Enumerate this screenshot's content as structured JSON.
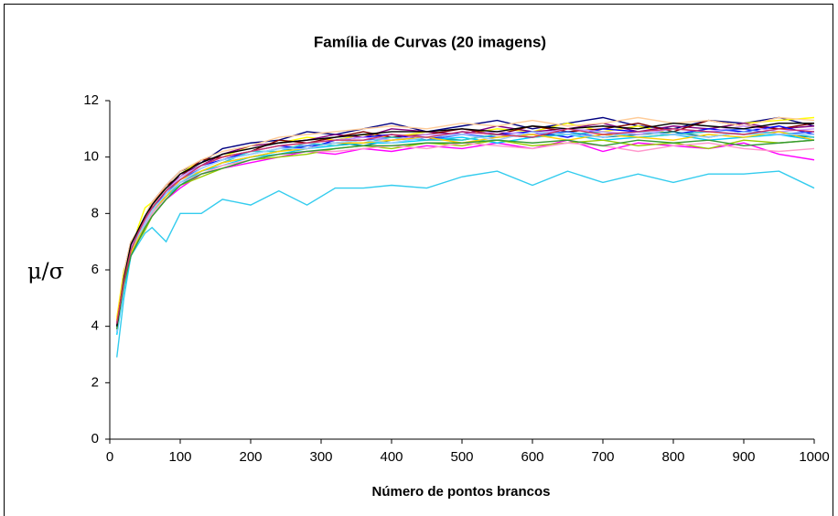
{
  "chart_data": {
    "type": "line",
    "title": "Família de Curvas (20 imagens)",
    "x_label": "Número de pontos brancos",
    "y_label": "μ/σ",
    "x": [
      10,
      20,
      30,
      40,
      50,
      60,
      80,
      100,
      130,
      160,
      200,
      240,
      280,
      320,
      360,
      400,
      450,
      500,
      550,
      600,
      650,
      700,
      750,
      800,
      850,
      900,
      950,
      1000
    ],
    "xlim": [
      0,
      1000
    ],
    "xticks": [
      0,
      100,
      200,
      300,
      400,
      500,
      600,
      700,
      800,
      900,
      1000
    ],
    "ylim": [
      0,
      12
    ],
    "yticks": [
      0,
      2,
      4,
      6,
      8,
      10,
      12
    ],
    "grid": false,
    "series": [
      {
        "color": "#000080",
        "values": [
          4.1,
          5.8,
          6.9,
          7.4,
          7.9,
          8.4,
          9.0,
          9.5,
          9.8,
          10.3,
          10.5,
          10.6,
          10.9,
          10.8,
          11.0,
          11.2,
          10.9,
          11.1,
          11.3,
          11.0,
          11.2,
          11.4,
          11.1,
          11.0,
          11.3,
          11.2,
          11.4,
          11.1
        ]
      },
      {
        "color": "#ff00ff",
        "values": [
          3.9,
          5.4,
          6.5,
          7.0,
          7.5,
          7.9,
          8.5,
          8.9,
          9.4,
          9.6,
          9.8,
          10.0,
          10.2,
          10.1,
          10.3,
          10.2,
          10.4,
          10.3,
          10.5,
          10.3,
          10.6,
          10.2,
          10.5,
          10.4,
          10.3,
          10.5,
          10.1,
          9.9
        ]
      },
      {
        "color": "#ffff00",
        "values": [
          4.3,
          6.0,
          6.6,
          7.5,
          8.2,
          8.4,
          8.9,
          9.4,
          9.9,
          10.0,
          10.4,
          10.5,
          10.7,
          10.6,
          10.8,
          10.7,
          10.9,
          10.8,
          11.0,
          10.9,
          11.2,
          10.9,
          11.1,
          10.8,
          11.0,
          11.2,
          11.3,
          11.4
        ]
      },
      {
        "color": "#33ccee",
        "values": [
          2.9,
          5.0,
          6.5,
          6.9,
          7.3,
          7.5,
          7.0,
          8.0,
          8.0,
          8.5,
          8.3,
          8.8,
          8.3,
          8.9,
          8.9,
          9.0,
          8.9,
          9.3,
          9.5,
          9.0,
          9.5,
          9.1,
          9.4,
          9.1,
          9.4,
          9.4,
          9.5,
          8.9
        ]
      },
      {
        "color": "#800080",
        "values": [
          4.2,
          5.7,
          6.8,
          7.3,
          7.8,
          8.2,
          8.8,
          9.4,
          9.7,
          10.1,
          10.4,
          10.5,
          10.6,
          10.8,
          10.7,
          11.0,
          10.9,
          10.8,
          11.1,
          10.9,
          11.0,
          11.2,
          10.9,
          11.1,
          11.0,
          11.2,
          11.0,
          11.1
        ]
      },
      {
        "color": "#800000",
        "values": [
          4.0,
          5.9,
          7.0,
          7.2,
          7.6,
          8.3,
          9.0,
          9.3,
          9.9,
          10.0,
          10.2,
          10.6,
          10.5,
          10.7,
          10.9,
          10.7,
          10.8,
          11.0,
          10.8,
          11.1,
          10.9,
          11.0,
          11.2,
          10.9,
          11.3,
          11.1,
          11.0,
          11.2
        ]
      },
      {
        "color": "#008080",
        "values": [
          3.8,
          5.5,
          6.6,
          7.1,
          7.6,
          8.0,
          8.6,
          9.1,
          9.5,
          9.8,
          10.0,
          10.2,
          10.4,
          10.5,
          10.4,
          10.6,
          10.7,
          10.6,
          10.8,
          10.7,
          10.9,
          10.7,
          10.8,
          10.9,
          10.7,
          10.9,
          10.8,
          10.7
        ]
      },
      {
        "color": "#0000ff",
        "values": [
          4.1,
          5.6,
          6.8,
          7.3,
          7.8,
          8.1,
          8.8,
          9.3,
          9.7,
          9.9,
          10.2,
          10.4,
          10.3,
          10.6,
          10.7,
          10.8,
          10.6,
          10.9,
          10.8,
          10.9,
          10.7,
          11.0,
          10.9,
          10.8,
          11.0,
          10.9,
          11.1,
          10.8
        ]
      },
      {
        "color": "#00ccff",
        "values": [
          3.7,
          5.3,
          6.5,
          7.0,
          7.6,
          8.0,
          8.6,
          9.0,
          9.5,
          9.7,
          10.0,
          10.1,
          10.3,
          10.4,
          10.5,
          10.5,
          10.6,
          10.7,
          10.5,
          10.7,
          10.8,
          10.6,
          10.7,
          10.8,
          10.6,
          10.7,
          10.8,
          10.6
        ]
      },
      {
        "color": "#99cc00",
        "values": [
          3.9,
          5.4,
          6.6,
          7.0,
          7.4,
          7.9,
          8.5,
          9.0,
          9.3,
          9.6,
          9.9,
          10.0,
          10.1,
          10.3,
          10.4,
          10.3,
          10.5,
          10.4,
          10.6,
          10.4,
          10.5,
          10.6,
          10.4,
          10.5,
          10.3,
          10.6,
          10.5,
          10.6
        ]
      },
      {
        "color": "#ff99cc",
        "values": [
          4.0,
          5.5,
          6.6,
          7.1,
          7.5,
          8.0,
          8.6,
          9.1,
          9.4,
          9.7,
          9.9,
          10.1,
          10.2,
          10.2,
          10.3,
          10.4,
          10.3,
          10.5,
          10.4,
          10.3,
          10.5,
          10.4,
          10.2,
          10.4,
          10.5,
          10.3,
          10.2,
          10.3
        ]
      },
      {
        "color": "#ffcc99",
        "values": [
          4.2,
          5.9,
          7.0,
          7.4,
          7.9,
          8.4,
          9.0,
          9.5,
          9.9,
          10.2,
          10.4,
          10.7,
          10.8,
          10.9,
          11.0,
          11.1,
          11.0,
          11.2,
          11.1,
          11.3,
          11.1,
          11.2,
          11.4,
          11.2,
          11.3,
          11.1,
          11.4,
          11.3
        ]
      },
      {
        "color": "#3366ff",
        "values": [
          4.0,
          5.6,
          6.7,
          7.2,
          7.7,
          8.1,
          8.7,
          9.2,
          9.6,
          9.9,
          10.1,
          10.3,
          10.4,
          10.5,
          10.6,
          10.7,
          10.6,
          10.8,
          10.7,
          10.8,
          10.9,
          10.7,
          10.9,
          10.8,
          10.9,
          11.0,
          10.8,
          10.9
        ]
      },
      {
        "color": "#33cccc",
        "values": [
          3.9,
          5.5,
          6.6,
          7.2,
          7.7,
          8.2,
          8.6,
          9.1,
          9.5,
          9.8,
          10.2,
          10.2,
          10.5,
          10.4,
          10.5,
          10.7,
          10.6,
          10.6,
          10.8,
          10.7,
          10.8,
          10.9,
          10.7,
          10.8,
          10.9,
          10.8,
          10.9,
          10.7
        ]
      },
      {
        "color": "#cc99ff",
        "values": [
          4.1,
          5.7,
          6.8,
          7.3,
          7.7,
          8.2,
          8.8,
          9.3,
          9.7,
          10.0,
          10.2,
          10.4,
          10.5,
          10.6,
          10.7,
          10.6,
          10.8,
          10.8,
          10.9,
          10.8,
          11.0,
          10.9,
          10.8,
          11.0,
          10.9,
          11.1,
          10.9,
          11.0
        ]
      },
      {
        "color": "#ffcc00",
        "values": [
          4.2,
          5.8,
          6.6,
          7.1,
          7.6,
          8.1,
          8.6,
          9.2,
          9.5,
          9.8,
          10.0,
          10.2,
          10.3,
          10.5,
          10.5,
          10.6,
          10.7,
          10.5,
          10.7,
          10.8,
          10.6,
          10.8,
          10.7,
          10.6,
          10.8,
          10.7,
          10.9,
          10.6
        ]
      },
      {
        "color": "#99ccff",
        "values": [
          3.8,
          5.4,
          6.7,
          7.2,
          7.6,
          8.1,
          8.7,
          9.1,
          9.6,
          9.9,
          10.1,
          10.3,
          10.3,
          10.5,
          10.6,
          10.5,
          10.7,
          10.8,
          10.6,
          10.9,
          10.8,
          10.7,
          10.9,
          10.8,
          10.7,
          10.9,
          10.8,
          10.8
        ]
      },
      {
        "color": "#339933",
        "values": [
          3.9,
          5.5,
          6.5,
          7.0,
          7.5,
          7.9,
          8.5,
          9.0,
          9.4,
          9.6,
          9.9,
          10.1,
          10.2,
          10.3,
          10.4,
          10.4,
          10.5,
          10.5,
          10.6,
          10.5,
          10.6,
          10.4,
          10.6,
          10.5,
          10.6,
          10.4,
          10.5,
          10.6
        ]
      },
      {
        "color": "#000000",
        "values": [
          4.0,
          5.7,
          6.9,
          7.4,
          7.9,
          8.3,
          8.9,
          9.4,
          9.8,
          10.1,
          10.3,
          10.5,
          10.6,
          10.7,
          10.8,
          10.9,
          10.9,
          11.0,
          10.9,
          11.1,
          11.0,
          11.1,
          11.0,
          11.2,
          11.1,
          11.0,
          11.2,
          11.2
        ]
      },
      {
        "color": "#cc3366",
        "values": [
          4.1,
          5.6,
          6.7,
          7.3,
          7.8,
          8.2,
          8.8,
          9.2,
          9.7,
          10.0,
          10.2,
          10.4,
          10.5,
          10.6,
          10.6,
          10.8,
          10.7,
          10.9,
          10.8,
          10.7,
          11.0,
          10.8,
          10.9,
          11.0,
          10.9,
          10.8,
          11.0,
          10.9
        ]
      }
    ]
  }
}
